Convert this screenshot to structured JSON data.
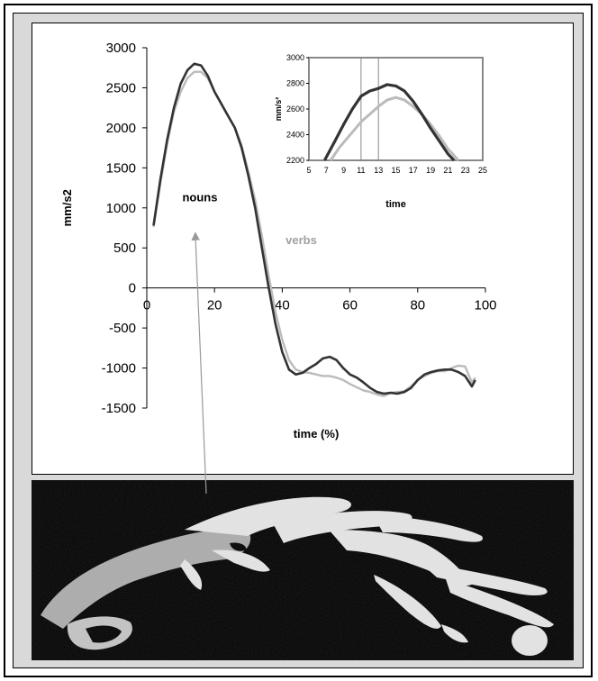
{
  "chart_data": [
    {
      "type": "line",
      "title": "",
      "xlabel": "time (%)",
      "ylabel": "mm/s2",
      "xlim": [
        0,
        100
      ],
      "ylim": [
        -1500,
        3000
      ],
      "xticks": [
        "0",
        "20",
        "40",
        "60",
        "80",
        "100"
      ],
      "yticks": [
        "3000",
        "2500",
        "2000",
        "1500",
        "1000",
        "500",
        "0",
        "-500",
        "-1000",
        "-1500"
      ],
      "annotations": [
        "nouns",
        "verbs"
      ],
      "series": [
        {
          "name": "nouns",
          "color": "#333333",
          "points": [
            [
              2,
              780
            ],
            [
              4,
              1350
            ],
            [
              6,
              1850
            ],
            [
              8,
              2250
            ],
            [
              10,
              2550
            ],
            [
              12,
              2720
            ],
            [
              14,
              2800
            ],
            [
              16,
              2780
            ],
            [
              18,
              2650
            ],
            [
              20,
              2450
            ],
            [
              22,
              2300
            ],
            [
              24,
              2150
            ],
            [
              26,
              2000
            ],
            [
              28,
              1750
            ],
            [
              30,
              1400
            ],
            [
              32,
              1000
            ],
            [
              34,
              500
            ],
            [
              36,
              0
            ],
            [
              38,
              -450
            ],
            [
              40,
              -800
            ],
            [
              42,
              -1020
            ],
            [
              44,
              -1080
            ],
            [
              46,
              -1060
            ],
            [
              48,
              -1000
            ],
            [
              50,
              -950
            ],
            [
              52,
              -880
            ],
            [
              54,
              -860
            ],
            [
              56,
              -900
            ],
            [
              58,
              -1000
            ],
            [
              60,
              -1080
            ],
            [
              62,
              -1120
            ],
            [
              64,
              -1180
            ],
            [
              66,
              -1250
            ],
            [
              68,
              -1300
            ],
            [
              70,
              -1320
            ],
            [
              72,
              -1310
            ],
            [
              74,
              -1320
            ],
            [
              76,
              -1300
            ],
            [
              78,
              -1250
            ],
            [
              80,
              -1150
            ],
            [
              82,
              -1080
            ],
            [
              84,
              -1050
            ],
            [
              86,
              -1030
            ],
            [
              88,
              -1020
            ],
            [
              90,
              -1020
            ],
            [
              92,
              -1050
            ],
            [
              94,
              -1100
            ],
            [
              96,
              -1230
            ],
            [
              97,
              -1150
            ]
          ]
        },
        {
          "name": "verbs",
          "color": "#bbbbbb",
          "points": [
            [
              2,
              760
            ],
            [
              4,
              1300
            ],
            [
              6,
              1800
            ],
            [
              8,
              2200
            ],
            [
              10,
              2450
            ],
            [
              12,
              2620
            ],
            [
              14,
              2700
            ],
            [
              16,
              2700
            ],
            [
              18,
              2620
            ],
            [
              20,
              2450
            ],
            [
              22,
              2300
            ],
            [
              24,
              2150
            ],
            [
              26,
              2000
            ],
            [
              28,
              1780
            ],
            [
              30,
              1450
            ],
            [
              32,
              1100
            ],
            [
              34,
              650
            ],
            [
              36,
              150
            ],
            [
              38,
              -300
            ],
            [
              40,
              -650
            ],
            [
              42,
              -900
            ],
            [
              44,
              -1020
            ],
            [
              46,
              -1050
            ],
            [
              48,
              -1060
            ],
            [
              50,
              -1080
            ],
            [
              52,
              -1100
            ],
            [
              54,
              -1100
            ],
            [
              56,
              -1120
            ],
            [
              58,
              -1150
            ],
            [
              60,
              -1200
            ],
            [
              62,
              -1240
            ],
            [
              64,
              -1280
            ],
            [
              66,
              -1300
            ],
            [
              68,
              -1330
            ],
            [
              70,
              -1350
            ],
            [
              72,
              -1310
            ],
            [
              74,
              -1300
            ],
            [
              76,
              -1290
            ],
            [
              78,
              -1230
            ],
            [
              80,
              -1150
            ],
            [
              82,
              -1100
            ],
            [
              84,
              -1060
            ],
            [
              86,
              -1040
            ],
            [
              88,
              -1040
            ],
            [
              90,
              -1000
            ],
            [
              92,
              -970
            ],
            [
              94,
              -980
            ],
            [
              96,
              -1180
            ],
            [
              97,
              -1120
            ]
          ]
        }
      ]
    },
    {
      "type": "line",
      "title": "",
      "xlabel": "time",
      "ylabel": "mm/s²",
      "xlim": [
        5,
        25
      ],
      "ylim": [
        2200,
        3000
      ],
      "xticks": [
        "5",
        "7",
        "9",
        "11",
        "13",
        "15",
        "17",
        "19",
        "21",
        "23",
        "25"
      ],
      "yticks": [
        "3000",
        "2800",
        "2600",
        "2400",
        "2200"
      ],
      "highlight_x": [
        11,
        13
      ],
      "series": [
        {
          "name": "nouns",
          "color": "#333333",
          "points": [
            [
              6.8,
              2200
            ],
            [
              8,
              2350
            ],
            [
              9,
              2480
            ],
            [
              10,
              2600
            ],
            [
              11,
              2700
            ],
            [
              12,
              2740
            ],
            [
              13,
              2760
            ],
            [
              14,
              2790
            ],
            [
              15,
              2780
            ],
            [
              16,
              2740
            ],
            [
              17,
              2660
            ],
            [
              18,
              2560
            ],
            [
              19,
              2450
            ],
            [
              20,
              2350
            ],
            [
              21,
              2250
            ],
            [
              21.7,
              2200
            ]
          ]
        },
        {
          "name": "verbs",
          "color": "#bbbbbb",
          "points": [
            [
              7.5,
              2200
            ],
            [
              8.5,
              2300
            ],
            [
              10,
              2420
            ],
            [
              11,
              2500
            ],
            [
              12,
              2560
            ],
            [
              13,
              2620
            ],
            [
              14,
              2670
            ],
            [
              15,
              2690
            ],
            [
              16,
              2670
            ],
            [
              17,
              2620
            ],
            [
              18,
              2560
            ],
            [
              19,
              2480
            ],
            [
              20,
              2390
            ],
            [
              21,
              2290
            ],
            [
              22.2,
              2200
            ]
          ]
        }
      ]
    }
  ]
}
